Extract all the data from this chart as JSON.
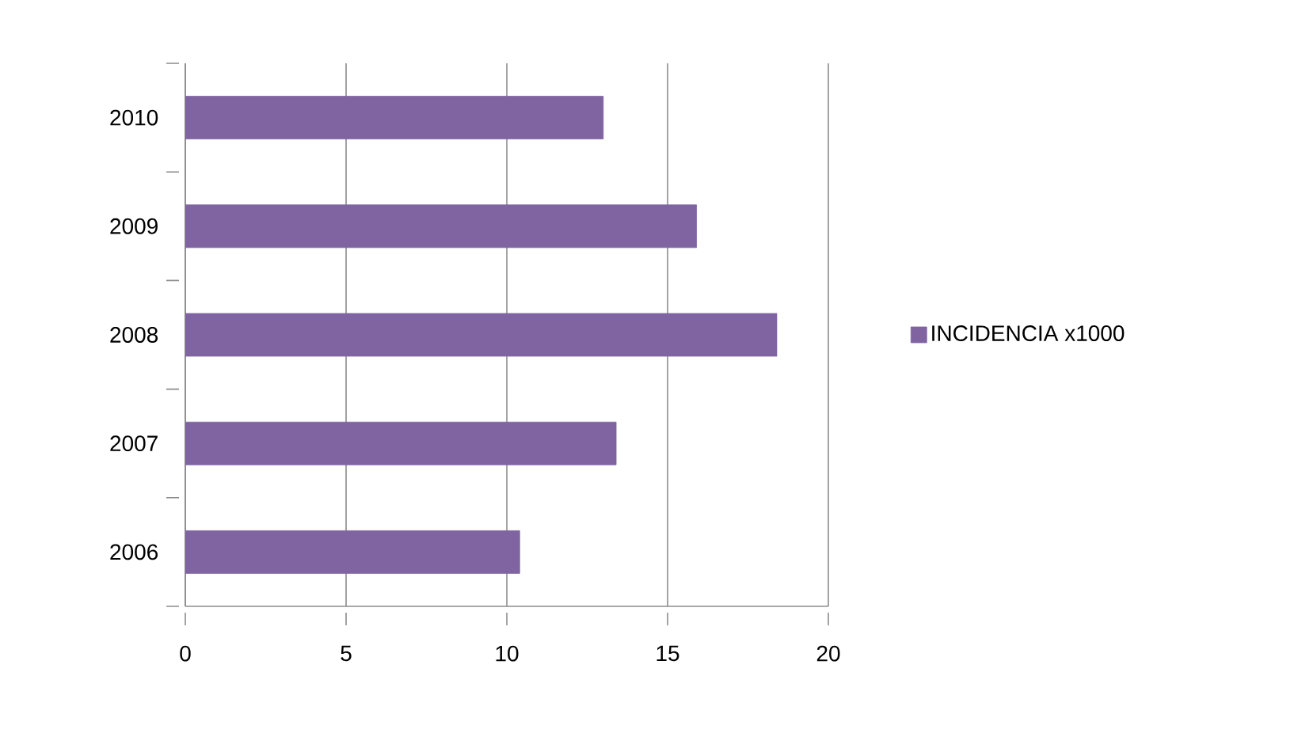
{
  "chart_data": {
    "type": "bar",
    "orientation": "horizontal",
    "categories": [
      "2010",
      "2009",
      "2008",
      "2007",
      "2006"
    ],
    "series": [
      {
        "name": "INCIDENCIA x1000",
        "color": "#8064a2",
        "values": [
          13.0,
          15.9,
          18.4,
          13.4,
          10.4
        ]
      }
    ],
    "xlim": [
      0,
      20
    ],
    "xticks": [
      0,
      5,
      10,
      15,
      20
    ],
    "grid": "x",
    "legend": "right"
  }
}
